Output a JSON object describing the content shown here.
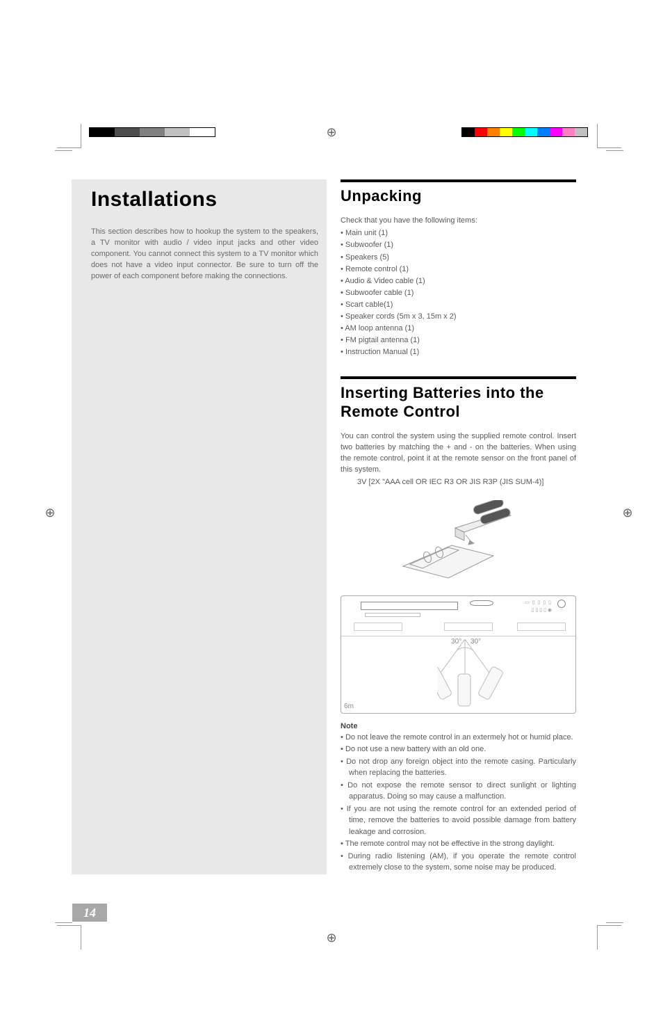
{
  "colorBars": {
    "left": [
      "#000000",
      "#000000",
      "#4d4d4d",
      "#4d4d4d",
      "#808080",
      "#808080",
      "#c0c0c0",
      "#c0c0c0",
      "#ffffff",
      "#ffffff"
    ],
    "right": [
      "#000000",
      "#ff0000",
      "#ff8000",
      "#ffff00",
      "#00ff00",
      "#00ffff",
      "#0080ff",
      "#ff00ff",
      "#ff80c0",
      "#c0c0c0"
    ]
  },
  "leftCol": {
    "h1": "Installations",
    "intro": "This section describes how to hookup the system to the speakers, a TV monitor with audio / video input jacks and other video component. You cannot connect this system to a TV monitor which does not have a video input connector. Be sure to turn off the power of each component before making the connections."
  },
  "rightCol": {
    "unpacking": {
      "h2": "Unpacking",
      "lead": "Check that you have the following items:",
      "items": [
        "Main unit (1)",
        "Subwoofer (1)",
        "Speakers (5)",
        "Remote control (1)",
        "Audio & Video cable (1)",
        "Subwoofer cable (1)",
        "Scart cable(1)",
        "Speaker cords (5m x 3, 15m x 2)",
        "AM loop antenna (1)",
        "FM pigtail antenna (1)",
        "Instruction Manual (1)"
      ]
    },
    "batteries": {
      "h2": "Inserting Batteries into the Remote Control",
      "para": "You can control the system using the supplied remote control. Insert two batteries by matching the + and - on the batteries. When using the remote control, point it at the remote sensor on the front panel of this system.",
      "spec": "3V [2X \"AAA cell OR IEC R3 OR JIS R3P (JIS SUM-4)]",
      "angles": {
        "left": "30°",
        "right": "30°"
      },
      "distance": "6m",
      "noteTitle": "Note",
      "notes": [
        "Do not leave the remote control in an extermely hot or humid place.",
        "Do not use a new battery with an old one.",
        "Do not drop any foreign object into the remote casing. Particularly when replacing the batteries.",
        "Do not expose the remote sensor to direct sunlight or lighting apparatus. Doing so may cause a malfunction.",
        "If you are not using the remote control for an extended period of time, remove the batteries to avoid possible damage from battery leakage and corrosion.",
        "The remote control may not be effective in the strong daylight.",
        "During radio listening (AM), if you operate the remote control extremely close to the system, some noise may be produced."
      ]
    }
  },
  "pageNumber": "14"
}
